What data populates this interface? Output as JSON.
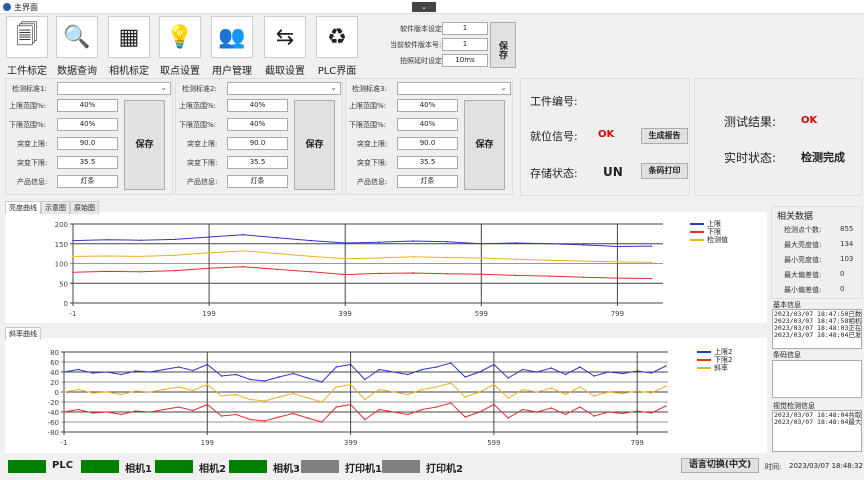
{
  "window": {
    "title": "主界面",
    "collapse_icon": "chevron-down-icon"
  },
  "toolbar": [
    {
      "label": "工件标定",
      "icon": "document-copy-icon",
      "glyph": "🗐"
    },
    {
      "label": "数据查询",
      "icon": "magnifier-table-icon",
      "glyph": "🔍"
    },
    {
      "label": "相机标定",
      "icon": "checkerboard-icon",
      "glyph": "▦"
    },
    {
      "label": "取点设置",
      "icon": "lightbulb-arrow-icon",
      "glyph": "💡"
    },
    {
      "label": "用户管理",
      "icon": "users-icon",
      "glyph": "👥"
    },
    {
      "label": "截取设置",
      "icon": "split-arrows-icon",
      "glyph": "⇆"
    },
    {
      "label": "PLC界面",
      "icon": "refresh-icon",
      "glyph": "♻"
    }
  ],
  "version": {
    "software_version_label": "软件版本设定:",
    "software_version": "1",
    "current_version_label": "当前软件版本号:",
    "current_version": "1",
    "delay_label": "拍照延时设定:",
    "delay": "10ms",
    "save": "保存"
  },
  "standards": [
    {
      "label": "检测标准1:",
      "value": "",
      "upper_label": "上限范围%:",
      "upper": "40%",
      "lower_label": "下限范围%:",
      "lower": "40%",
      "jump_up_label": "突变上限:",
      "jump_up": "90.0",
      "jump_down_label": "突变下限:",
      "jump_down": "35.5",
      "product_label": "产品信息:",
      "product": "灯条",
      "save": "保存"
    },
    {
      "label": "检测标准2:",
      "value": "",
      "upper_label": "上限范围%:",
      "upper": "40%",
      "lower_label": "下限范围%:",
      "lower": "40%",
      "jump_up_label": "突变上限:",
      "jump_up": "90.0",
      "jump_down_label": "突变下限:",
      "jump_down": "35.5",
      "product_label": "产品信息:",
      "product": "灯条",
      "save": "保存"
    },
    {
      "label": "检测标准3:",
      "value": "",
      "upper_label": "上限范围%:",
      "upper": "40%",
      "lower_label": "下限范围%:",
      "lower": "40%",
      "jump_up_label": "突变上限:",
      "jump_up": "90.0",
      "jump_down_label": "突变下限:",
      "jump_down": "35.5",
      "product_label": "产品信息:",
      "product": "灯条",
      "save": "保存"
    }
  ],
  "info": {
    "part_no_label": "工件编号:",
    "part_no": "",
    "position_label": "就位信号:",
    "position": "OK",
    "storage_label": "存储状态:",
    "storage": "UN",
    "report_btn": "生成报告",
    "barcode_btn": "条码打印"
  },
  "result": {
    "test_label": "测试结果:",
    "test": "OK",
    "status_label": "实时状态:",
    "status": "检测完成"
  },
  "colors": {
    "ok": "#e00000",
    "upper": "#3333cc",
    "lower": "#e03030",
    "value": "#f0b020",
    "status_on": "#008000",
    "status_off": "#808080"
  },
  "tabs1": [
    "亮度曲线",
    "示意图",
    "原始图"
  ],
  "tabs2": [
    "斜率曲线"
  ],
  "chart_data": [
    {
      "type": "line",
      "x": [
        -1,
        49,
        99,
        149,
        199,
        249,
        299,
        349,
        399,
        449,
        499,
        549,
        599,
        649,
        699,
        749,
        799,
        849
      ],
      "series": [
        {
          "name": "上限",
          "values": [
            158,
            160,
            159,
            161,
            167,
            173,
            165,
            158,
            152,
            154,
            157,
            155,
            150,
            152,
            150,
            147,
            143,
            144
          ]
        },
        {
          "name": "下限",
          "values": [
            78,
            80,
            79,
            82,
            88,
            92,
            85,
            79,
            72,
            75,
            76,
            74,
            73,
            70,
            68,
            65,
            63,
            62
          ]
        },
        {
          "name": "检测值",
          "values": [
            118,
            119,
            118,
            121,
            127,
            132,
            125,
            118,
            112,
            114,
            117,
            115,
            114,
            111,
            108,
            106,
            104,
            103
          ]
        }
      ],
      "xticks": [
        "-1",
        "199",
        "399",
        "599",
        "799"
      ],
      "yticks": [
        "0",
        "50",
        "100",
        "150",
        "200"
      ],
      "ylim": [
        0,
        200
      ],
      "grid": true,
      "legend": "top-right"
    },
    {
      "type": "line",
      "x": [
        -1,
        19,
        39,
        59,
        79,
        99,
        119,
        139,
        159,
        179,
        199,
        219,
        239,
        259,
        279,
        299,
        319,
        339,
        359,
        379,
        399,
        419,
        439,
        459,
        479,
        499,
        519,
        539,
        559,
        579,
        599,
        619,
        639,
        659,
        679,
        699,
        719,
        739,
        759,
        779,
        799,
        819,
        839
      ],
      "series": [
        {
          "name": "上限2",
          "values": [
            40,
            45,
            38,
            40,
            35,
            42,
            40,
            45,
            50,
            43,
            55,
            32,
            35,
            25,
            22,
            30,
            37,
            28,
            20,
            50,
            55,
            25,
            45,
            40,
            35,
            45,
            50,
            58,
            30,
            40,
            55,
            28,
            45,
            40,
            48,
            35,
            50,
            32,
            40,
            37,
            42,
            38,
            52
          ]
        },
        {
          "name": "下限2",
          "values": [
            -40,
            -35,
            -42,
            -40,
            -45,
            -38,
            -40,
            -35,
            -30,
            -37,
            -25,
            -48,
            -45,
            -55,
            -58,
            -50,
            -43,
            -52,
            -60,
            -30,
            -25,
            -55,
            -35,
            -40,
            -45,
            -35,
            -30,
            -22,
            -50,
            -40,
            -25,
            -52,
            -35,
            -40,
            -32,
            -45,
            -30,
            -48,
            -40,
            -43,
            -38,
            -42,
            -28
          ]
        },
        {
          "name": "斜率",
          "values": [
            0,
            5,
            -2,
            0,
            -5,
            2,
            0,
            5,
            10,
            3,
            15,
            -8,
            -5,
            -15,
            -18,
            -10,
            -3,
            -12,
            -20,
            10,
            15,
            -15,
            5,
            0,
            -5,
            5,
            10,
            18,
            -10,
            0,
            15,
            -12,
            5,
            0,
            8,
            -5,
            10,
            -8,
            0,
            -3,
            2,
            -2,
            12
          ]
        }
      ],
      "xticks": [
        "-1",
        "199",
        "399",
        "599",
        "799"
      ],
      "yticks": [
        "-80",
        "-60",
        "-40",
        "-20",
        "0",
        "20",
        "40",
        "60",
        "80"
      ],
      "ylim": [
        -80,
        80
      ],
      "grid": true,
      "legend": "top-right"
    }
  ],
  "stats": {
    "title": "相关数据",
    "rows": [
      {
        "label": "检测点个数:",
        "value": "855"
      },
      {
        "label": "最大亮度值:",
        "value": "134"
      },
      {
        "label": "最小亮度值:",
        "value": "103"
      },
      {
        "label": "最大偏差值:",
        "value": "0"
      },
      {
        "label": "最小偏差值:",
        "value": "0"
      }
    ]
  },
  "basic_info": {
    "title": "基本信息",
    "lines": [
      "2023/03/07 18:47:50已数",
      "2023/03/07 18:47:58相机",
      "2023/03/07 18:48:03正在",
      "2023/03/07 18:48:04已发"
    ]
  },
  "barcode_info": {
    "title": "条码信息"
  },
  "vision_info": {
    "title": "视觉检测信息",
    "lines": [
      "2023/03/07 18:48:04共取",
      "2023/03/07 18:48:04最大"
    ]
  },
  "status_bar": {
    "items": [
      {
        "label": "PLC",
        "on": true
      },
      {
        "label": "相机1",
        "on": true
      },
      {
        "label": "相机2",
        "on": true
      },
      {
        "label": "相机3",
        "on": true
      },
      {
        "label": "打印机1",
        "on": false
      },
      {
        "label": "打印机2",
        "on": false
      }
    ],
    "lang_btn": "语言切换(中文)",
    "time_label": "时间:",
    "time": "2023/03/07 18:48:32"
  }
}
